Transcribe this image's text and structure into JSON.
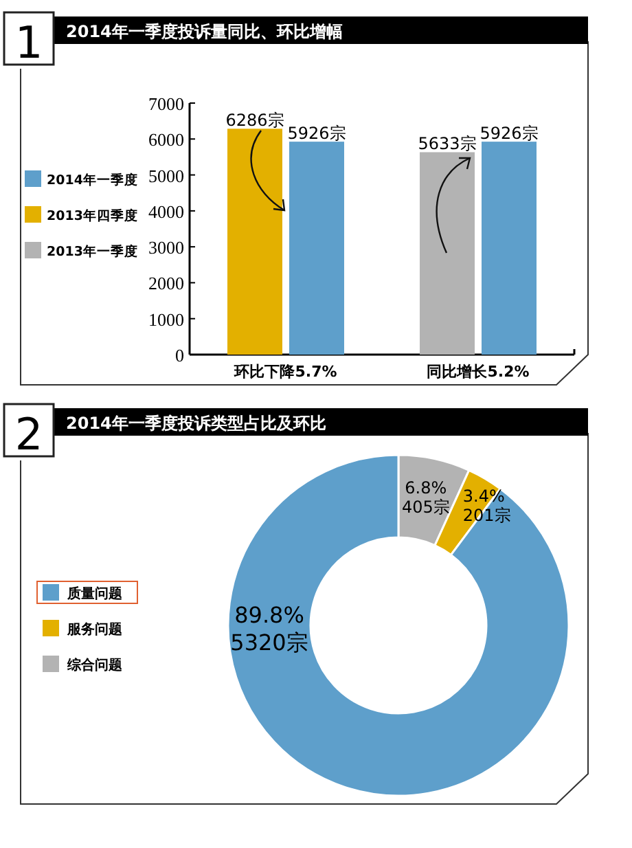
{
  "chart_data": [
    {
      "type": "bar",
      "title": "2014年一季度投诉量同比、环比增幅",
      "annotations": [
        "1"
      ],
      "categories": [
        "环比下降5.7%",
        "同比增长5.2%"
      ],
      "series": [
        {
          "name": "2014年一季度",
          "color": "#5e9fcb",
          "values": [
            5926,
            5926
          ],
          "value_labels": [
            "5926宗",
            "5926宗"
          ]
        },
        {
          "name": "2013年四季度",
          "color": "#e3b000",
          "values": [
            6286,
            null
          ],
          "value_labels": [
            "6286宗",
            null
          ]
        },
        {
          "name": "2013年一季度",
          "color": "#b3b3b3",
          "values": [
            null,
            5633
          ],
          "value_labels": [
            null,
            "5633宗"
          ]
        }
      ],
      "ylim": [
        0,
        7000
      ],
      "yticks": [
        0,
        1000,
        2000,
        3000,
        4000,
        5000,
        6000,
        7000
      ],
      "legend": "left",
      "grid": false
    },
    {
      "type": "donut",
      "title": "2014年一季度投诉类型占比及环比",
      "annotations": [
        "2"
      ],
      "categories": [
        "质量问题",
        "服务问题",
        "综合问题"
      ],
      "values": [
        89.8,
        3.4,
        6.8
      ],
      "colors": [
        "#5e9fcb",
        "#e3b000",
        "#b3b3b3"
      ],
      "value_labels": [
        "89.8%\n5320宗",
        "3.4%\n201宗",
        "6.8%\n405宗"
      ],
      "legend": "left"
    }
  ]
}
